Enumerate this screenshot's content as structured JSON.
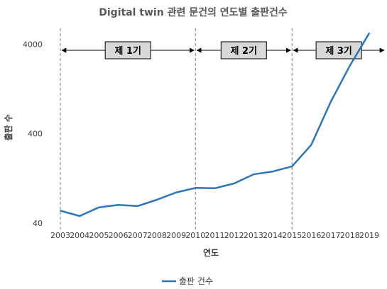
{
  "chart_data": {
    "type": "line",
    "title": "Digital twin 관련 문건의 연도별 출판건수",
    "xlabel": "연도",
    "ylabel": "출판 수",
    "y_scale": "log",
    "ylim": [
      40,
      6000
    ],
    "y_ticks": [
      40,
      400,
      4000
    ],
    "y_tick_labels": [
      "40",
      "400",
      "4000"
    ],
    "categories": [
      "2003",
      "2004",
      "2005",
      "2006",
      "2007",
      "2008",
      "2009",
      "2010",
      "2011",
      "2012",
      "2013",
      "2014",
      "2015",
      "2016",
      "2017",
      "2018",
      "2019"
    ],
    "series": [
      {
        "name": "출판 건수",
        "color": "#2E75B6",
        "values": [
          55,
          48,
          60,
          64,
          62,
          73,
          88,
          99,
          98,
          111,
          140,
          151,
          172,
          300,
          900,
          2300,
          5300
        ]
      }
    ],
    "period_dividers": [
      "2003",
      "2010",
      "2015"
    ],
    "periods": [
      {
        "label": "제 1기",
        "start": "2003",
        "end": "2010"
      },
      {
        "label": "제 2기",
        "start": "2010",
        "end": "2015"
      },
      {
        "label": "제 3기",
        "start": "2015",
        "end": "2019"
      }
    ],
    "legend_position": "bottom",
    "grid": false
  }
}
